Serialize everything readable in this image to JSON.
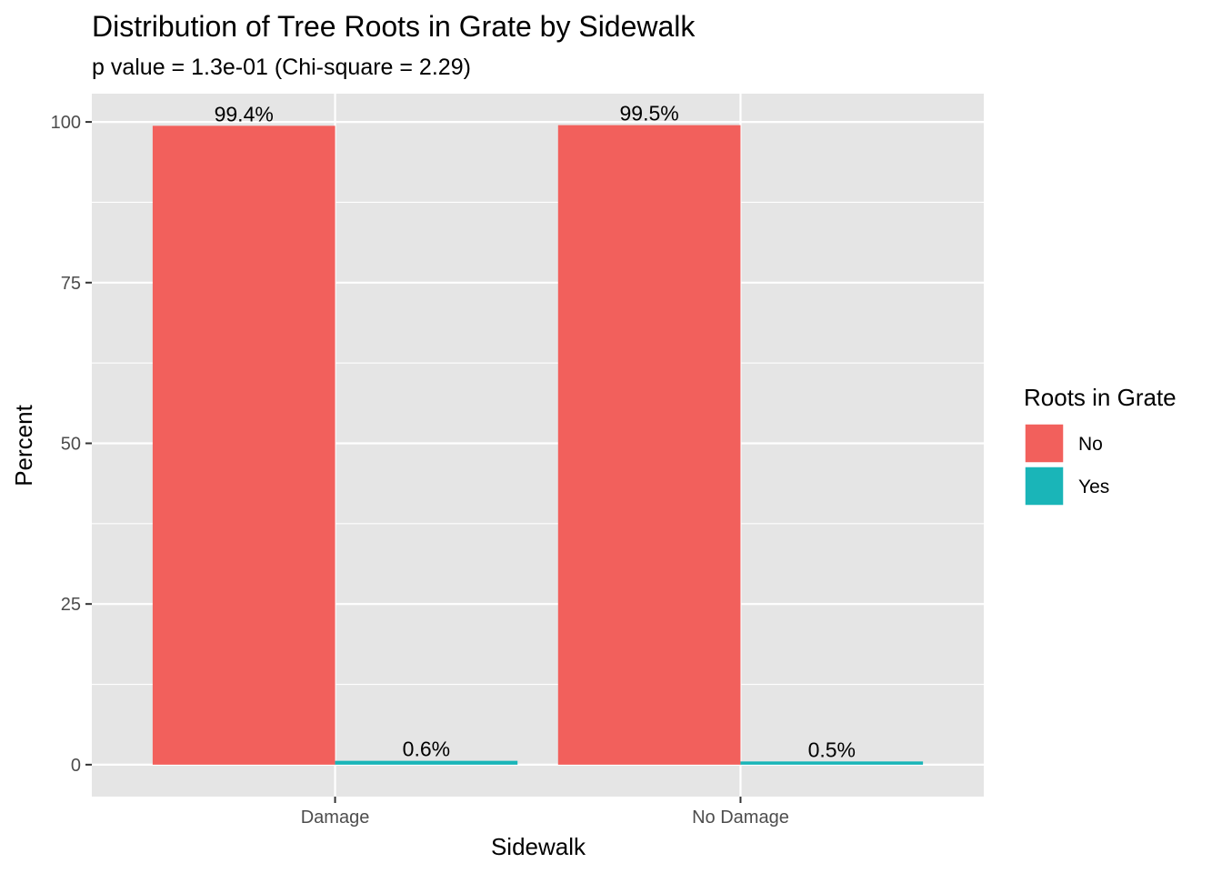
{
  "chart_data": {
    "type": "bar",
    "title": "Distribution of Tree Roots in Grate by Sidewalk",
    "subtitle": "p value = 1.3e-01 (Chi-square = 2.29)",
    "xlabel": "Sidewalk",
    "ylabel": "Percent",
    "categories": [
      "Damage",
      "No Damage"
    ],
    "ylim": [
      -4.97,
      104.4
    ],
    "yticks": [
      0,
      25,
      50,
      75,
      100
    ],
    "yticks_minor": [
      12.5,
      37.5,
      62.5,
      87.5
    ],
    "grid": true,
    "legend": {
      "title": "Roots in Grate",
      "position": "right"
    },
    "series": [
      {
        "name": "No",
        "color": "#F2605C",
        "values": [
          99.4,
          99.5
        ],
        "labels": [
          "99.4%",
          "99.5%"
        ]
      },
      {
        "name": "Yes",
        "color": "#1AB5B8",
        "values": [
          0.6,
          0.5
        ],
        "labels": [
          "0.6%",
          "0.5%"
        ]
      }
    ],
    "panel_background": "#E5E5E5"
  }
}
